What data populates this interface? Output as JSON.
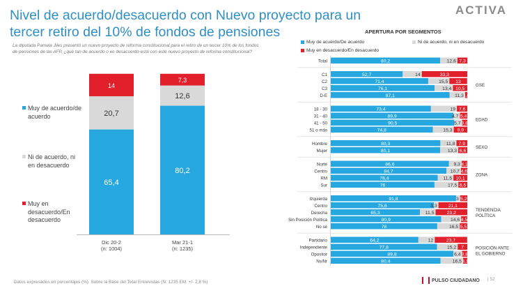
{
  "header": {
    "title": "Nivel de acuerdo/desacuerdo con Nuevo proyecto para un tercer retiro del 10% de fondos de pensiones",
    "logo": "ACTIVA",
    "question": "La diputada Pamela Jiles presentó un nuevo proyecto de reforma constitucional para el retiro de un tercer 10% de los fondos de pensiones de las AFP. ¿qué tan de acuerdo o en desacuerdo está con este nuevo proyecto de reforma constitucional?"
  },
  "colors": {
    "agree": "#27a7e0",
    "neutral": "#d9d9d9",
    "disagree": "#e2202c",
    "title": "#2f8fc4"
  },
  "legend_main": {
    "agree": "Muy de acuerdo/de acuerdo",
    "neutral": "Ni de acuerdo, ni en desacuerdo",
    "disagree": "Muy en desacuerdo/En desacuerdo"
  },
  "legend_seg": {
    "agree": "Muy de acuerdo/De acuerdo",
    "neutral": "Ni de acuerdo, ni en desacuerdo",
    "disagree": "Muy en desacuerdo/En desacuerdo"
  },
  "chart_data": [
    {
      "type": "bar",
      "stacked": true,
      "categories": [
        "Dic 20-2",
        "Mar 21-1"
      ],
      "category_notes": [
        "(n: 1004)",
        "(n: 1235)"
      ],
      "series": [
        {
          "name": "Muy de acuerdo/de acuerdo",
          "values": [
            65.4,
            80.2
          ]
        },
        {
          "name": "Ni de acuerdo, ni en desacuerdo",
          "values": [
            20.7,
            12.6
          ]
        },
        {
          "name": "Muy en desacuerdo/En desacuerdo",
          "values": [
            14,
            7.3
          ]
        }
      ]
    },
    {
      "type": "bar",
      "orientation": "horizontal",
      "stacked": true,
      "title": "APERTURA POR SEGMENTOS",
      "groups": [
        {
          "name": "",
          "rows": [
            {
              "label": "Total",
              "values": [
                80.2,
                12.6,
                7.3
              ]
            }
          ]
        },
        {
          "name": "GSE",
          "rows": [
            {
              "label": "C1",
              "values": [
                52.7,
                14,
                33.3
              ]
            },
            {
              "label": "C2",
              "values": [
                71.4,
                15.5,
                13
              ]
            },
            {
              "label": "C3",
              "values": [
                76.1,
                13.4,
                10.5
              ]
            },
            {
              "label": "D-E",
              "values": [
                87.1,
                11.3,
                1.6
              ]
            }
          ]
        },
        {
          "name": "EDAD",
          "rows": [
            {
              "label": "18 - 30",
              "values": [
                73.4,
                19,
                7.6
              ]
            },
            {
              "label": "31 - 40",
              "values": [
                89.9,
                4.7,
                5.4
              ]
            },
            {
              "label": "41 - 50",
              "values": [
                90.5,
                5.7,
                3.8
              ]
            },
            {
              "label": "51 o más",
              "values": [
                74.8,
                15.3,
                9.9
              ]
            }
          ]
        },
        {
          "name": "SEXO",
          "rows": [
            {
              "label": "Hombre",
              "values": [
                80.3,
                11.8,
                7.9
              ]
            },
            {
              "label": "Mujer",
              "values": [
                80.1,
                13.3,
                6.6
              ]
            }
          ]
        },
        {
          "name": "ZONA",
          "rows": [
            {
              "label": "Norte",
              "values": [
                86.6,
                9.3,
                4.1
              ]
            },
            {
              "label": "Centro",
              "values": [
                84.7,
                10.7,
                4.6
              ]
            },
            {
              "label": "RM",
              "values": [
                78.4,
                11.5,
                10.1
              ]
            },
            {
              "label": "Sur",
              "values": [
                76,
                17.5,
                6.5
              ]
            }
          ]
        },
        {
          "name": "TENDENCIA POLÍTICA",
          "rows": [
            {
              "label": "Izquierda",
              "values": [
                91.8,
                3,
                5.2
              ]
            },
            {
              "label": "Centro",
              "values": [
                75.6,
                3.3,
                21.1
              ]
            },
            {
              "label": "Derecha",
              "values": [
                65.3,
                11.5,
                23.2
              ]
            },
            {
              "label": "Sin Posición Política",
              "values": [
                80.9,
                14.6,
                4.5
              ]
            },
            {
              "label": "No sé",
              "values": [
                78,
                16.5,
                5.5
              ]
            }
          ]
        },
        {
          "name": "POSICIÓN ANTE EL GOBIERNO",
          "rows": [
            {
              "label": "Partidario",
              "values": [
                64.2,
                12,
                23.7
              ]
            },
            {
              "label": "Independiente",
              "values": [
                77.8,
                15.2,
                7
              ]
            },
            {
              "label": "Opositor",
              "values": [
                89.8,
                6.4,
                3.8
              ]
            },
            {
              "label": "Ns/Nr",
              "values": [
                80.4,
                16.5,
                3.1
              ]
            }
          ]
        }
      ]
    }
  ],
  "footer": {
    "note": "Datos expresados en porcentajes (%). Sobre la Base del Total Entrevistas (N: 1235  EM: +/- 2,8 %)",
    "brand": "PULSO CIUDADANO",
    "page": "| 52"
  }
}
